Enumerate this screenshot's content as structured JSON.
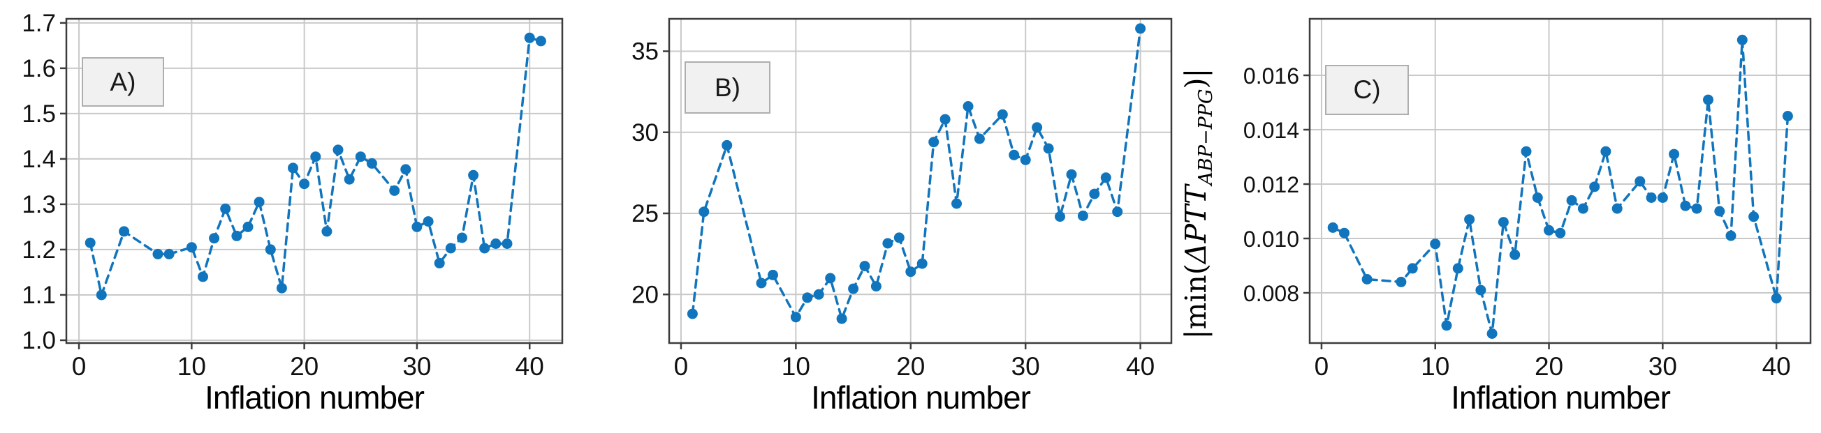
{
  "figure": {
    "background": "#ffffff",
    "accent_color": "#1175bd",
    "grid_color": "#c9c9c9",
    "spine_color": "#3c3c3c",
    "tag_box_fill": "#f1f1f1",
    "tag_box_border": "#aeaeae"
  },
  "chart_data": [
    {
      "type": "line",
      "style": "dashed",
      "marker": "circle",
      "tag": "A)",
      "xlabel": "Inflation number",
      "ylabel": "",
      "grid": true,
      "xlim": [
        -1.12,
        42.9
      ],
      "ylim": [
        0.9938,
        1.709
      ],
      "x_tick_values": [
        0,
        10,
        20,
        30,
        40
      ],
      "x_tick_labels": [
        "0",
        "10",
        "20",
        "30",
        "40"
      ],
      "y_tick_values": [
        1.0,
        1.1,
        1.2,
        1.3,
        1.4,
        1.5,
        1.6,
        1.7
      ],
      "y_tick_labels": [
        "1.0",
        "1.1",
        "1.2",
        "1.3",
        "1.4",
        "1.5",
        "1.6",
        "1.7"
      ],
      "x": [
        1,
        2,
        4,
        7,
        8,
        10,
        11,
        12,
        13,
        14,
        15,
        16,
        17,
        18,
        19,
        20,
        21,
        22,
        23,
        24,
        25,
        26,
        28,
        29,
        30,
        31,
        32,
        33,
        34,
        35,
        36,
        37,
        38,
        40,
        41
      ],
      "y": [
        1.215,
        1.1,
        1.24,
        1.19,
        1.19,
        1.205,
        1.14,
        1.225,
        1.29,
        1.23,
        1.25,
        1.305,
        1.2,
        1.115,
        1.38,
        1.345,
        1.405,
        1.24,
        1.42,
        1.355,
        1.405,
        1.39,
        1.33,
        1.377,
        1.25,
        1.262,
        1.17,
        1.203,
        1.226,
        1.364,
        1.203,
        1.213,
        1.213,
        1.667,
        1.66
      ]
    },
    {
      "type": "line",
      "style": "dashed",
      "marker": "circle",
      "tag": "B)",
      "xlabel": "Inflation number",
      "ylabel": "",
      "grid": true,
      "xlim": [
        -1.03,
        42.7
      ],
      "ylim": [
        17.0,
        37.0
      ],
      "x_tick_values": [
        0,
        10,
        20,
        30,
        40
      ],
      "x_tick_labels": [
        "0",
        "10",
        "20",
        "30",
        "40"
      ],
      "y_tick_values": [
        20,
        25,
        30,
        35
      ],
      "y_tick_labels": [
        "20",
        "25",
        "30",
        "35"
      ],
      "x": [
        1,
        2,
        4,
        7,
        8,
        10,
        11,
        12,
        13,
        14,
        15,
        16,
        17,
        18,
        19,
        20,
        21,
        22,
        23,
        24,
        25,
        26,
        28,
        29,
        30,
        31,
        32,
        33,
        34,
        35,
        36,
        37,
        38,
        40
      ],
      "y": [
        18.8,
        25.1,
        29.2,
        20.7,
        21.2,
        18.6,
        19.8,
        20.0,
        21.0,
        18.5,
        20.35,
        21.75,
        20.5,
        23.15,
        23.5,
        21.4,
        21.9,
        29.4,
        30.8,
        25.6,
        31.6,
        29.6,
        31.1,
        28.6,
        28.3,
        30.3,
        29.0,
        24.8,
        27.4,
        24.85,
        26.2,
        27.2,
        25.1,
        36.4
      ]
    },
    {
      "type": "line",
      "style": "dashed",
      "marker": "circle",
      "tag": "C)",
      "xlabel": "Inflation number",
      "ylabel": "|min(ΔPTT_ABP−PPG)|",
      "ylabel_parts": {
        "open": "|min(",
        "var": "ΔPTT",
        "sub": "ABP−PPG",
        "close": ")|"
      },
      "grid": true,
      "xlim": [
        -1.04,
        43.0
      ],
      "ylim": [
        0.006154,
        0.018077
      ],
      "x_tick_values": [
        0,
        10,
        20,
        30,
        40
      ],
      "x_tick_labels": [
        "0",
        "10",
        "20",
        "30",
        "40"
      ],
      "y_tick_values": [
        0.008,
        0.01,
        0.012,
        0.014,
        0.016
      ],
      "y_tick_labels": [
        "0.008",
        "0.010",
        "0.012",
        "0.014",
        "0.016"
      ],
      "x": [
        1,
        2,
        4,
        7,
        8,
        10,
        11,
        12,
        13,
        14,
        15,
        16,
        17,
        18,
        19,
        20,
        21,
        22,
        23,
        24,
        25,
        26,
        28,
        29,
        30,
        31,
        32,
        33,
        34,
        35,
        36,
        37,
        38,
        40,
        41
      ],
      "y": [
        0.0104,
        0.0102,
        0.0085,
        0.0084,
        0.0089,
        0.0098,
        0.0068,
        0.0089,
        0.0107,
        0.0081,
        0.0065,
        0.0106,
        0.0094,
        0.0132,
        0.0115,
        0.0103,
        0.0102,
        0.0114,
        0.0111,
        0.0119,
        0.0132,
        0.0111,
        0.0121,
        0.0115,
        0.0115,
        0.0131,
        0.0112,
        0.0111,
        0.0151,
        0.011,
        0.0101,
        0.0173,
        0.0108,
        0.0078,
        0.0145
      ]
    }
  ]
}
